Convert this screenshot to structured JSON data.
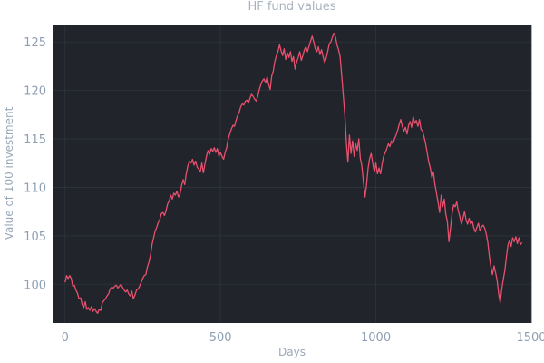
{
  "chart_data": {
    "type": "line",
    "title": "HF fund values",
    "xlabel": "Days",
    "ylabel": "Value of 100 investment",
    "xlim": [
      -40,
      1500
    ],
    "ylim": [
      96,
      126.8
    ],
    "xticks": [
      0,
      500,
      1000,
      1500
    ],
    "yticks": [
      100,
      105,
      110,
      115,
      120,
      125
    ],
    "grid": true,
    "colors": {
      "plot_background": "#21242b",
      "line": "#e8506e",
      "grid": "#2f343d",
      "tick_text": "#8e9fb4"
    },
    "series": [
      {
        "points": [
          [
            0,
            100.2
          ],
          [
            5,
            100.9
          ],
          [
            10,
            100.6
          ],
          [
            15,
            100.9
          ],
          [
            20,
            100.6
          ],
          [
            25,
            99.8
          ],
          [
            30,
            99.9
          ],
          [
            35,
            99.4
          ],
          [
            40,
            99.1
          ],
          [
            45,
            98.5
          ],
          [
            50,
            98.6
          ],
          [
            55,
            97.9
          ],
          [
            60,
            97.6
          ],
          [
            65,
            98.2
          ],
          [
            70,
            97.4
          ],
          [
            75,
            97.6
          ],
          [
            80,
            97.3
          ],
          [
            85,
            97.7
          ],
          [
            90,
            97.2
          ],
          [
            95,
            97.5
          ],
          [
            100,
            97.2
          ],
          [
            105,
            97.0
          ],
          [
            110,
            97.4
          ],
          [
            115,
            97.3
          ],
          [
            120,
            98.1
          ],
          [
            125,
            98.3
          ],
          [
            130,
            98.5
          ],
          [
            135,
            98.8
          ],
          [
            140,
            99.0
          ],
          [
            145,
            99.5
          ],
          [
            150,
            99.7
          ],
          [
            155,
            99.6
          ],
          [
            160,
            99.8
          ],
          [
            165,
            99.9
          ],
          [
            170,
            99.6
          ],
          [
            175,
            99.8
          ],
          [
            180,
            100.0
          ],
          [
            185,
            99.7
          ],
          [
            190,
            99.4
          ],
          [
            195,
            99.2
          ],
          [
            200,
            99.4
          ],
          [
            205,
            99.0
          ],
          [
            210,
            98.8
          ],
          [
            215,
            99.3
          ],
          [
            220,
            98.5
          ],
          [
            225,
            98.9
          ],
          [
            230,
            99.4
          ],
          [
            235,
            99.5
          ],
          [
            240,
            99.8
          ],
          [
            245,
            100.2
          ],
          [
            250,
            100.6
          ],
          [
            255,
            100.9
          ],
          [
            260,
            101.0
          ],
          [
            265,
            101.8
          ],
          [
            270,
            102.3
          ],
          [
            275,
            103.0
          ],
          [
            280,
            104.1
          ],
          [
            285,
            104.8
          ],
          [
            290,
            105.5
          ],
          [
            295,
            105.9
          ],
          [
            300,
            106.4
          ],
          [
            305,
            106.7
          ],
          [
            310,
            107.3
          ],
          [
            315,
            107.4
          ],
          [
            320,
            107.1
          ],
          [
            325,
            107.6
          ],
          [
            330,
            108.3
          ],
          [
            335,
            108.6
          ],
          [
            340,
            109.2
          ],
          [
            345,
            108.8
          ],
          [
            350,
            109.4
          ],
          [
            355,
            109.2
          ],
          [
            360,
            109.6
          ],
          [
            365,
            109.0
          ],
          [
            370,
            109.3
          ],
          [
            375,
            110.2
          ],
          [
            380,
            110.8
          ],
          [
            385,
            110.3
          ],
          [
            390,
            111.4
          ],
          [
            395,
            112.2
          ],
          [
            400,
            112.7
          ],
          [
            405,
            112.5
          ],
          [
            410,
            112.9
          ],
          [
            415,
            112.3
          ],
          [
            420,
            112.7
          ],
          [
            425,
            112.1
          ],
          [
            430,
            111.9
          ],
          [
            435,
            111.6
          ],
          [
            440,
            112.5
          ],
          [
            445,
            111.5
          ],
          [
            450,
            112.4
          ],
          [
            455,
            113.2
          ],
          [
            460,
            113.8
          ],
          [
            465,
            113.4
          ],
          [
            470,
            114.0
          ],
          [
            475,
            113.7
          ],
          [
            480,
            114.1
          ],
          [
            485,
            113.6
          ],
          [
            490,
            114.0
          ],
          [
            495,
            113.2
          ],
          [
            500,
            113.6
          ],
          [
            505,
            113.2
          ],
          [
            510,
            112.9
          ],
          [
            515,
            113.6
          ],
          [
            520,
            114.1
          ],
          [
            525,
            115.0
          ],
          [
            530,
            115.5
          ],
          [
            535,
            116.0
          ],
          [
            540,
            116.4
          ],
          [
            545,
            116.3
          ],
          [
            550,
            116.9
          ],
          [
            555,
            117.4
          ],
          [
            560,
            117.7
          ],
          [
            565,
            118.3
          ],
          [
            570,
            118.6
          ],
          [
            575,
            118.5
          ],
          [
            580,
            118.9
          ],
          [
            585,
            119.0
          ],
          [
            590,
            118.7
          ],
          [
            595,
            119.2
          ],
          [
            600,
            119.6
          ],
          [
            605,
            119.4
          ],
          [
            610,
            119.1
          ],
          [
            615,
            118.9
          ],
          [
            620,
            119.4
          ],
          [
            625,
            120.1
          ],
          [
            630,
            120.6
          ],
          [
            635,
            121.0
          ],
          [
            640,
            121.2
          ],
          [
            645,
            120.8
          ],
          [
            650,
            121.4
          ],
          [
            655,
            120.6
          ],
          [
            660,
            120.1
          ],
          [
            665,
            121.5
          ],
          [
            670,
            122.0
          ],
          [
            675,
            123.0
          ],
          [
            680,
            123.6
          ],
          [
            685,
            124.0
          ],
          [
            690,
            124.7
          ],
          [
            695,
            124.1
          ],
          [
            700,
            123.6
          ],
          [
            705,
            124.3
          ],
          [
            710,
            123.2
          ],
          [
            715,
            123.9
          ],
          [
            720,
            123.4
          ],
          [
            725,
            124.0
          ],
          [
            730,
            123.0
          ],
          [
            735,
            123.5
          ],
          [
            740,
            122.2
          ],
          [
            745,
            122.9
          ],
          [
            750,
            123.4
          ],
          [
            755,
            124.0
          ],
          [
            760,
            123.1
          ],
          [
            765,
            123.6
          ],
          [
            770,
            124.2
          ],
          [
            775,
            124.5
          ],
          [
            780,
            124.0
          ],
          [
            785,
            124.6
          ],
          [
            790,
            125.1
          ],
          [
            795,
            125.6
          ],
          [
            800,
            125.0
          ],
          [
            805,
            124.3
          ],
          [
            810,
            124.0
          ],
          [
            815,
            124.5
          ],
          [
            820,
            123.7
          ],
          [
            825,
            124.2
          ],
          [
            830,
            123.5
          ],
          [
            835,
            122.9
          ],
          [
            840,
            123.3
          ],
          [
            845,
            124.0
          ],
          [
            850,
            124.8
          ],
          [
            855,
            125.0
          ],
          [
            860,
            125.5
          ],
          [
            865,
            125.9
          ],
          [
            870,
            125.5
          ],
          [
            875,
            124.7
          ],
          [
            880,
            124.2
          ],
          [
            885,
            123.5
          ],
          [
            890,
            121.5
          ],
          [
            895,
            119.5
          ],
          [
            900,
            117.5
          ],
          [
            905,
            114.6
          ],
          [
            910,
            112.6
          ],
          [
            915,
            115.4
          ],
          [
            920,
            113.5
          ],
          [
            925,
            114.8
          ],
          [
            930,
            113.2
          ],
          [
            935,
            114.5
          ],
          [
            940,
            113.8
          ],
          [
            945,
            115.0
          ],
          [
            950,
            113.0
          ],
          [
            955,
            112.2
          ],
          [
            960,
            110.5
          ],
          [
            965,
            109.0
          ],
          [
            970,
            110.3
          ],
          [
            975,
            112.0
          ],
          [
            980,
            113.0
          ],
          [
            985,
            113.5
          ],
          [
            990,
            112.5
          ],
          [
            995,
            111.6
          ],
          [
            1000,
            112.5
          ],
          [
            1005,
            111.4
          ],
          [
            1010,
            112.0
          ],
          [
            1015,
            111.4
          ],
          [
            1020,
            112.4
          ],
          [
            1025,
            113.2
          ],
          [
            1030,
            113.6
          ],
          [
            1035,
            114.0
          ],
          [
            1040,
            114.5
          ],
          [
            1045,
            114.2
          ],
          [
            1050,
            114.8
          ],
          [
            1055,
            114.5
          ],
          [
            1060,
            115.0
          ],
          [
            1065,
            115.4
          ],
          [
            1070,
            115.9
          ],
          [
            1075,
            116.5
          ],
          [
            1080,
            117.0
          ],
          [
            1085,
            116.3
          ],
          [
            1090,
            115.8
          ],
          [
            1095,
            116.2
          ],
          [
            1100,
            115.5
          ],
          [
            1105,
            116.4
          ],
          [
            1110,
            116.8
          ],
          [
            1115,
            116.2
          ],
          [
            1120,
            117.3
          ],
          [
            1125,
            116.6
          ],
          [
            1130,
            116.9
          ],
          [
            1135,
            116.3
          ],
          [
            1140,
            117.0
          ],
          [
            1145,
            116.0
          ],
          [
            1150,
            115.8
          ],
          [
            1155,
            115.2
          ],
          [
            1160,
            114.5
          ],
          [
            1165,
            113.6
          ],
          [
            1170,
            112.6
          ],
          [
            1175,
            112.0
          ],
          [
            1180,
            111.0
          ],
          [
            1185,
            111.6
          ],
          [
            1190,
            110.3
          ],
          [
            1195,
            109.4
          ],
          [
            1200,
            108.5
          ],
          [
            1205,
            107.4
          ],
          [
            1210,
            109.2
          ],
          [
            1215,
            108.0
          ],
          [
            1220,
            108.8
          ],
          [
            1225,
            107.2
          ],
          [
            1230,
            106.5
          ],
          [
            1235,
            104.4
          ],
          [
            1240,
            105.8
          ],
          [
            1245,
            107.3
          ],
          [
            1250,
            108.2
          ],
          [
            1255,
            108.0
          ],
          [
            1260,
            108.5
          ],
          [
            1265,
            107.6
          ],
          [
            1270,
            107.0
          ],
          [
            1275,
            106.2
          ],
          [
            1280,
            106.8
          ],
          [
            1285,
            107.5
          ],
          [
            1290,
            106.7
          ],
          [
            1295,
            106.2
          ],
          [
            1300,
            106.8
          ],
          [
            1305,
            106.2
          ],
          [
            1310,
            106.5
          ],
          [
            1315,
            105.8
          ],
          [
            1320,
            105.4
          ],
          [
            1325,
            105.9
          ],
          [
            1330,
            106.3
          ],
          [
            1335,
            105.5
          ],
          [
            1340,
            105.9
          ],
          [
            1345,
            106.1
          ],
          [
            1350,
            105.8
          ],
          [
            1355,
            105.2
          ],
          [
            1360,
            104.3
          ],
          [
            1365,
            102.9
          ],
          [
            1370,
            101.8
          ],
          [
            1375,
            101.0
          ],
          [
            1380,
            101.9
          ],
          [
            1385,
            101.2
          ],
          [
            1390,
            100.4
          ],
          [
            1395,
            99.0
          ],
          [
            1400,
            98.1
          ],
          [
            1405,
            99.5
          ],
          [
            1410,
            100.5
          ],
          [
            1415,
            101.5
          ],
          [
            1420,
            102.9
          ],
          [
            1425,
            104.1
          ],
          [
            1430,
            104.5
          ],
          [
            1435,
            103.9
          ],
          [
            1440,
            104.8
          ],
          [
            1445,
            104.4
          ],
          [
            1450,
            104.9
          ],
          [
            1455,
            104.2
          ],
          [
            1460,
            104.8
          ],
          [
            1465,
            104.1
          ],
          [
            1470,
            104.3
          ]
        ]
      }
    ]
  }
}
